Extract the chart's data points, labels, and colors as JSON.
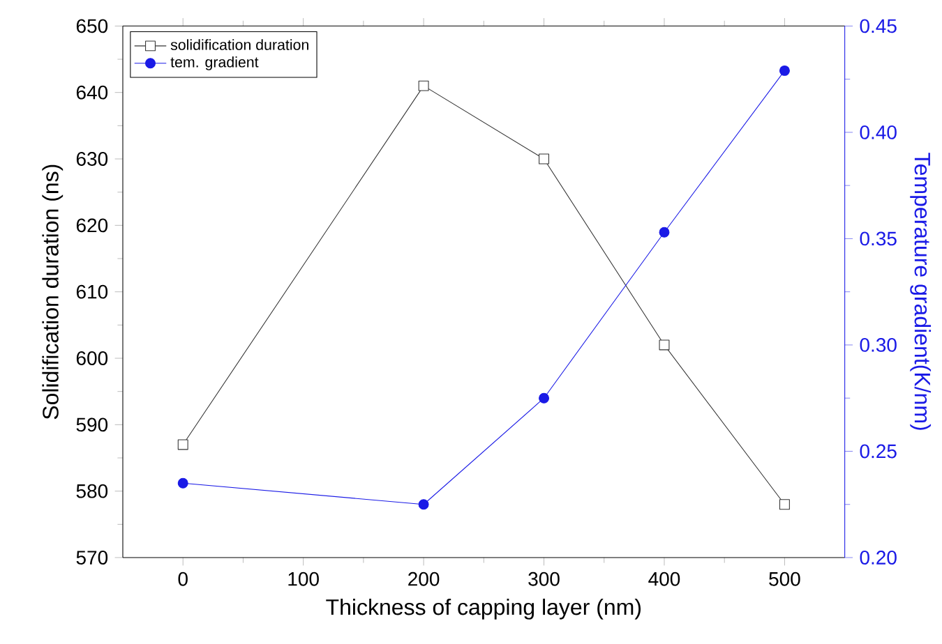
{
  "chart_data": {
    "type": "line",
    "xlabel": "Thickness of capping layer (nm)",
    "ylabel": "Solidification duration (ns)",
    "y2label": "Temperature gradient(K/nm)",
    "x": [
      0,
      200,
      300,
      400,
      500
    ],
    "series": [
      {
        "name": "solidification duration",
        "color": "#333333",
        "marker": "square",
        "values": [
          587,
          641,
          630,
          602,
          578
        ]
      },
      {
        "name": "tem. gradient",
        "color": "#1a1ae6",
        "marker": "circle",
        "axis": "y2",
        "values": [
          0.235,
          0.225,
          0.275,
          0.353,
          0.429
        ]
      }
    ],
    "xlim": [
      -50,
      550
    ],
    "xticks": [
      0,
      100,
      200,
      300,
      400,
      500
    ],
    "ylim": [
      570,
      650
    ],
    "yticks": [
      570,
      580,
      590,
      600,
      610,
      620,
      630,
      640,
      650
    ],
    "y2lim": [
      0.2,
      0.45
    ],
    "y2ticks": [
      {
        "value": 0.2,
        "label": "0.20"
      },
      {
        "value": 0.25,
        "label": "0.25"
      },
      {
        "value": 0.3,
        "label": "0.30"
      },
      {
        "value": 0.35,
        "label": "0.35"
      },
      {
        "value": 0.4,
        "label": "0.40"
      },
      {
        "value": 0.45,
        "label": "0.45"
      }
    ],
    "legend": "top left",
    "grid": false,
    "line_style": "solid"
  }
}
